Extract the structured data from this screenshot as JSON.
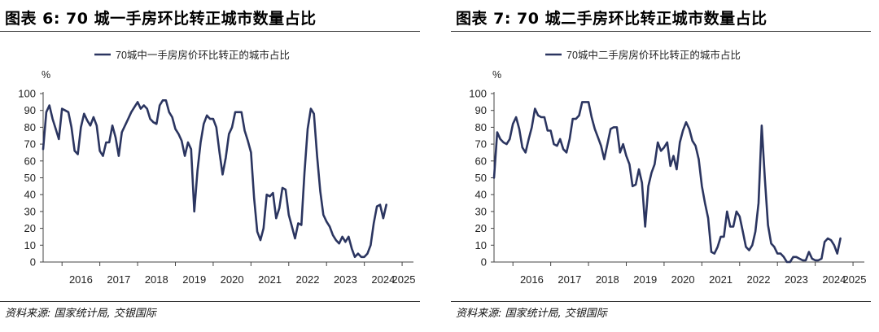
{
  "chart_data": [
    {
      "type": "line",
      "title": "图表 6: 70 城一手房环比转正城市数量占比",
      "legend": "70城中一手房房价环比转正的城市占比",
      "ylabel": "%",
      "ylim": [
        0,
        100
      ],
      "yticks": [
        0,
        10,
        20,
        30,
        40,
        50,
        60,
        70,
        80,
        90,
        100
      ],
      "xticks": [
        "2016",
        "2017",
        "2018",
        "2019",
        "2020",
        "2021",
        "2022",
        "2023",
        "2024",
        "2025"
      ],
      "xlim": [
        2015.5,
        2025.3
      ],
      "x_start": 2015.5,
      "x_step": 0.0833333,
      "series_color": "#2b3560",
      "source": "资料来源: 国家统计局, 交银国际",
      "values": [
        67,
        89,
        93,
        85,
        79,
        73,
        91,
        90,
        89,
        80,
        66,
        64,
        80,
        88,
        84,
        81,
        86,
        81,
        66,
        63,
        71,
        71,
        81,
        74,
        63,
        77,
        81,
        85,
        89,
        92,
        95,
        91,
        93,
        91,
        85,
        83,
        82,
        93,
        96,
        96,
        89,
        86,
        79,
        76,
        72,
        63,
        71,
        67,
        30,
        54,
        71,
        82,
        87,
        85,
        85,
        80,
        65,
        52,
        62,
        76,
        80,
        89,
        89,
        89,
        78,
        72,
        65,
        38,
        18,
        13,
        20,
        40,
        39,
        41,
        26,
        32,
        44,
        43,
        28,
        21,
        14,
        23,
        22,
        53,
        79,
        91,
        88,
        63,
        42,
        28,
        24,
        21,
        16,
        13,
        11,
        15,
        12,
        15,
        8,
        3,
        5,
        3,
        3,
        5,
        10,
        23,
        33,
        34,
        26,
        34
      ]
    },
    {
      "type": "line",
      "title": "图表 7: 70 城二手房环比转正城市数量占比",
      "legend": "70城中二手房房价环比转正的城市占比",
      "ylabel": "%",
      "ylim": [
        0,
        100
      ],
      "yticks": [
        0,
        10,
        20,
        30,
        40,
        50,
        60,
        70,
        80,
        90,
        100
      ],
      "xticks": [
        "2016",
        "2017",
        "2018",
        "2019",
        "2020",
        "2021",
        "2022",
        "2023",
        "2024",
        "2025"
      ],
      "xlim": [
        2015.5,
        2025.3
      ],
      "x_start": 2015.5,
      "x_step": 0.0833333,
      "series_color": "#2b3560",
      "source": "资料来源: 国家统计局, 交银国际",
      "values": [
        50,
        77,
        73,
        71,
        70,
        73,
        82,
        86,
        79,
        68,
        65,
        73,
        80,
        91,
        87,
        86,
        86,
        78,
        78,
        70,
        69,
        73,
        67,
        65,
        73,
        85,
        85,
        87,
        95,
        95,
        95,
        86,
        79,
        74,
        69,
        61,
        70,
        79,
        80,
        80,
        65,
        70,
        63,
        58,
        45,
        46,
        55,
        47,
        21,
        45,
        53,
        58,
        71,
        66,
        68,
        71,
        57,
        63,
        55,
        71,
        78,
        83,
        79,
        72,
        69,
        61,
        45,
        35,
        26,
        6,
        5,
        9,
        15,
        15,
        30,
        21,
        21,
        30,
        27,
        18,
        9,
        7,
        10,
        18,
        35,
        81,
        50,
        22,
        11,
        9,
        5,
        5,
        3,
        0,
        0,
        3,
        3,
        2,
        1,
        1,
        6,
        2,
        1,
        1,
        2,
        12,
        14,
        13,
        10,
        5,
        14
      ]
    }
  ]
}
